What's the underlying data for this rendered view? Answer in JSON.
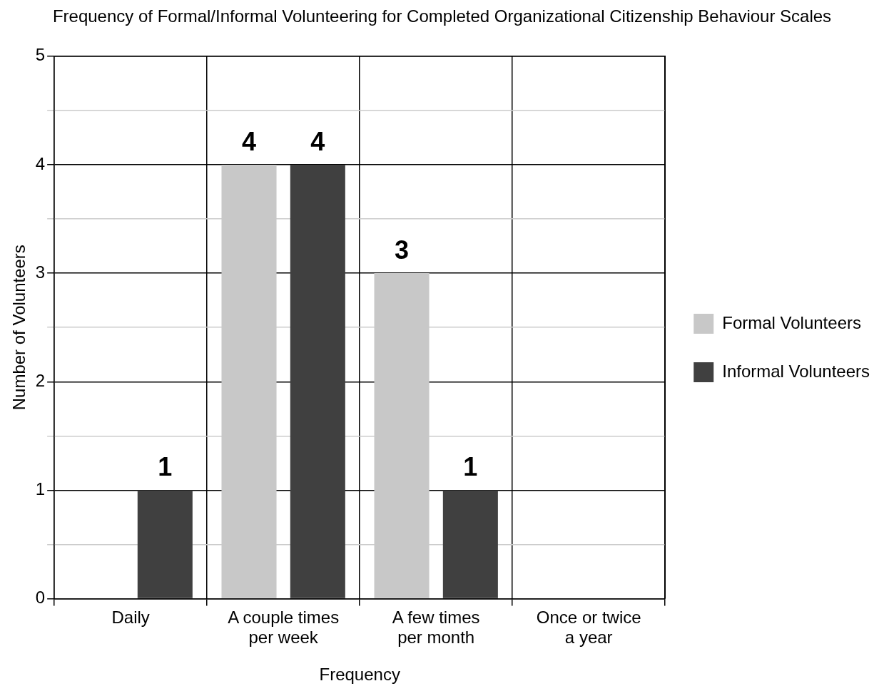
{
  "chart_data": {
    "type": "bar",
    "title": "Frequency of Formal/Informal Volunteering for Completed Organizational Citizenship Behaviour Scales",
    "xlabel": "Frequency",
    "ylabel": "Number of Volunteers",
    "categories": [
      "Daily",
      "A couple times per week",
      "A few times per month",
      "Once or twice a year"
    ],
    "series": [
      {
        "name": "Formal Volunteers",
        "color": "#c8c8c8",
        "values": [
          0,
          4,
          3,
          0
        ],
        "value_labels": [
          null,
          "4",
          "3",
          null
        ]
      },
      {
        "name": "Informal Volunteers",
        "color": "#404040",
        "values": [
          1,
          4,
          1,
          0
        ],
        "value_labels": [
          "1",
          "4",
          "1",
          null
        ]
      }
    ],
    "ylim": [
      0,
      5
    ],
    "yticks": [
      0,
      {
        "value": 0.5,
        "label": null
      },
      1,
      {
        "value": 1.5,
        "label": null
      },
      2,
      {
        "value": 2.5,
        "label": null
      },
      3,
      {
        "value": 3.5,
        "label": null
      },
      4,
      {
        "value": 4.5,
        "label": null
      },
      5
    ],
    "grid": true,
    "legend": "right"
  }
}
